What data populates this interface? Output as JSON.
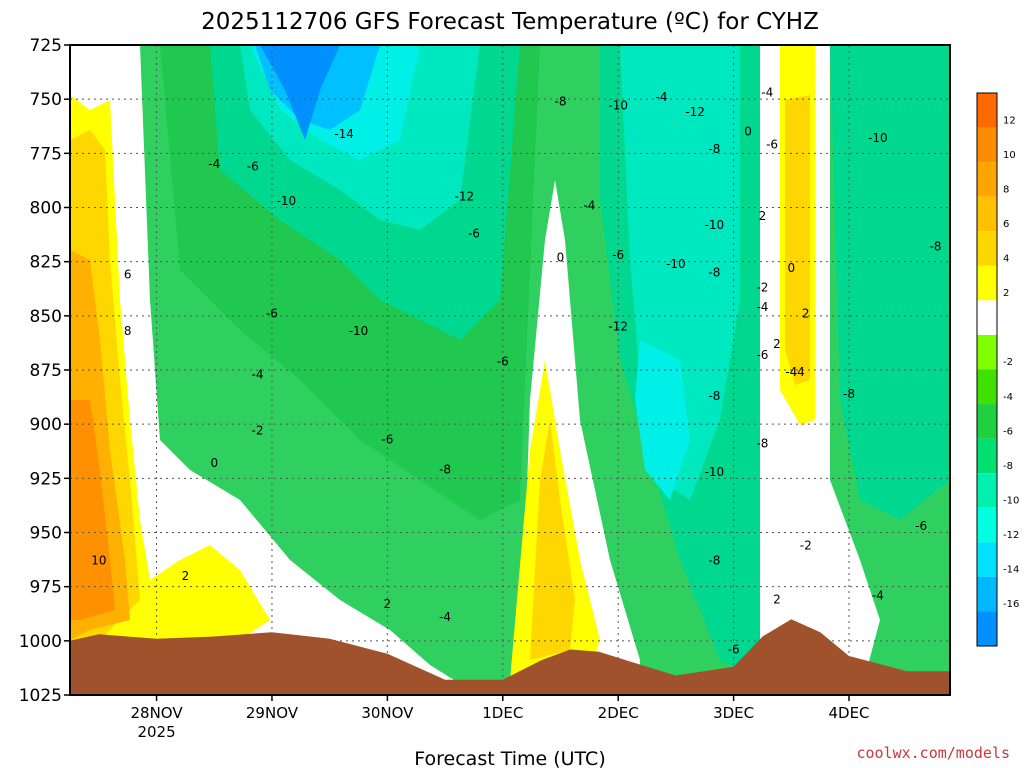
{
  "chart_data": {
    "type": "contour",
    "title": "2025112706 GFS Forecast Temperature (ºC) for CYHZ",
    "xlabel": "Forecast Time (UTC)",
    "ylabel": "",
    "credit": "coolwx.com/models",
    "y_axis": {
      "quantity": "pressure (hPa)",
      "reversed": true,
      "range": [
        725,
        1025
      ],
      "ticks": [
        "725",
        "750",
        "775",
        "800",
        "825",
        "850",
        "875",
        "900",
        "925",
        "950",
        "975",
        "1000",
        "1025"
      ]
    },
    "x_axis": {
      "range_days": [
        "2025-11-27T06",
        "2025-12-04T21"
      ],
      "ticks": [
        {
          "date": "2025-11-28T00",
          "label": "28NOV",
          "sublabel": "2025"
        },
        {
          "date": "2025-11-29T00",
          "label": "29NOV",
          "sublabel": ""
        },
        {
          "date": "2025-11-30T00",
          "label": "30NOV",
          "sublabel": ""
        },
        {
          "date": "2025-12-01T00",
          "label": "1DEC",
          "sublabel": ""
        },
        {
          "date": "2025-12-02T00",
          "label": "2DEC",
          "sublabel": ""
        },
        {
          "date": "2025-12-03T00",
          "label": "3DEC",
          "sublabel": ""
        },
        {
          "date": "2025-12-04T00",
          "label": "4DEC",
          "sublabel": ""
        }
      ]
    },
    "grid": true,
    "colorbar": {
      "position": "right",
      "levels": [
        {
          "label": "12",
          "color": "#ff6a00"
        },
        {
          "label": "10",
          "color": "#ff8c00"
        },
        {
          "label": "8",
          "color": "#ffa500"
        },
        {
          "label": "6",
          "color": "#ffc000"
        },
        {
          "label": "4",
          "color": "#ffd700"
        },
        {
          "label": "2",
          "color": "#ffff00"
        },
        {
          "label": "",
          "color": "#ffffff"
        },
        {
          "label": "-2",
          "color": "#80ff00"
        },
        {
          "label": "-4",
          "color": "#40e000"
        },
        {
          "label": "-6",
          "color": "#20d040"
        },
        {
          "label": "-8",
          "color": "#00e070"
        },
        {
          "label": "-10",
          "color": "#00f0b0"
        },
        {
          "label": "-12",
          "color": "#00ffe0"
        },
        {
          "label": "-14",
          "color": "#00e0ff"
        },
        {
          "label": "-16",
          "color": "#00b8ff"
        },
        {
          "label": "",
          "color": "#0090ff"
        }
      ]
    },
    "ground_color": "#a0522d",
    "surface_pressure": [
      {
        "date": "2025-11-27T06",
        "p": 1000
      },
      {
        "date": "2025-11-27T12",
        "p": 997
      },
      {
        "date": "2025-11-28T00",
        "p": 999
      },
      {
        "date": "2025-11-28T12",
        "p": 998
      },
      {
        "date": "2025-11-29T00",
        "p": 996
      },
      {
        "date": "2025-11-29T12",
        "p": 999
      },
      {
        "date": "2025-11-30T00",
        "p": 1006
      },
      {
        "date": "2025-11-30T12",
        "p": 1018
      },
      {
        "date": "2025-12-01T00",
        "p": 1018
      },
      {
        "date": "2025-12-01T08",
        "p": 1009
      },
      {
        "date": "2025-12-01T14",
        "p": 1004
      },
      {
        "date": "2025-12-01T20",
        "p": 1005
      },
      {
        "date": "2025-12-02T06",
        "p": 1012
      },
      {
        "date": "2025-12-02T12",
        "p": 1016
      },
      {
        "date": "2025-12-03T00",
        "p": 1012
      },
      {
        "date": "2025-12-03T06",
        "p": 998
      },
      {
        "date": "2025-12-03T12",
        "p": 990
      },
      {
        "date": "2025-12-03T18",
        "p": 996
      },
      {
        "date": "2025-12-04T00",
        "p": 1007
      },
      {
        "date": "2025-12-04T12",
        "p": 1014
      },
      {
        "date": "2025-12-04T21",
        "p": 1014
      }
    ],
    "contour_labels": [
      {
        "text": "-4",
        "date": "2025-11-28T12",
        "p": 780
      },
      {
        "text": "-6",
        "date": "2025-11-28T20",
        "p": 781
      },
      {
        "text": "-10",
        "date": "2025-11-29T03",
        "p": 797
      },
      {
        "text": "-14",
        "date": "2025-11-29T15",
        "p": 766
      },
      {
        "text": "-12",
        "date": "2025-11-30T16",
        "p": 795
      },
      {
        "text": "-8",
        "date": "2025-12-01T12",
        "p": 751
      },
      {
        "text": "-4",
        "date": "2025-12-02T09",
        "p": 749
      },
      {
        "text": "-10",
        "date": "2025-12-02T00",
        "p": 753
      },
      {
        "text": "-12",
        "date": "2025-12-02T16",
        "p": 756
      },
      {
        "text": "0",
        "date": "2025-12-03T03",
        "p": 765
      },
      {
        "text": "-4",
        "date": "2025-12-03T07",
        "p": 747
      },
      {
        "text": "-6",
        "date": "2025-12-03T08",
        "p": 771
      },
      {
        "text": "-10",
        "date": "2025-12-04T06",
        "p": 768
      },
      {
        "text": "-8",
        "date": "2025-12-02T20",
        "p": 773
      },
      {
        "text": "-4",
        "date": "2025-12-01T18",
        "p": 799
      },
      {
        "text": "-6",
        "date": "2025-11-30T18",
        "p": 812
      },
      {
        "text": "-10",
        "date": "2025-12-02T20",
        "p": 808
      },
      {
        "text": "2",
        "date": "2025-12-03T06",
        "p": 804
      },
      {
        "text": "-8",
        "date": "2025-12-04T18",
        "p": 818
      },
      {
        "text": "0",
        "date": "2025-12-01T12",
        "p": 823
      },
      {
        "text": "-6",
        "date": "2025-12-02T00",
        "p": 822
      },
      {
        "text": "-10",
        "date": "2025-12-02T12",
        "p": 826
      },
      {
        "text": "-8",
        "date": "2025-12-02T20",
        "p": 830
      },
      {
        "text": "0",
        "date": "2025-12-03T12",
        "p": 828
      },
      {
        "text": "6",
        "date": "2025-11-27T18",
        "p": 831
      },
      {
        "text": "-2",
        "date": "2025-12-03T06",
        "p": 837
      },
      {
        "text": "-6",
        "date": "2025-11-29T00",
        "p": 849
      },
      {
        "text": "-10",
        "date": "2025-11-29T18",
        "p": 857
      },
      {
        "text": "-4",
        "date": "2025-12-03T06",
        "p": 846
      },
      {
        "text": "2",
        "date": "2025-12-03T15",
        "p": 849
      },
      {
        "text": "8",
        "date": "2025-11-27T18",
        "p": 857
      },
      {
        "text": "-12",
        "date": "2025-12-02T00",
        "p": 855
      },
      {
        "text": "-6",
        "date": "2025-12-03T06",
        "p": 868
      },
      {
        "text": "2",
        "date": "2025-12-03T09",
        "p": 863
      },
      {
        "text": "-4",
        "date": "2025-12-03T12",
        "p": 876
      },
      {
        "text": "4",
        "date": "2025-12-03T14",
        "p": 876
      },
      {
        "text": "-6",
        "date": "2025-12-01T00",
        "p": 871
      },
      {
        "text": "-4",
        "date": "2025-11-28T21",
        "p": 877
      },
      {
        "text": "-8",
        "date": "2025-12-02T20",
        "p": 887
      },
      {
        "text": "-8",
        "date": "2025-12-04T00",
        "p": 886
      },
      {
        "text": "-2",
        "date": "2025-11-28T21",
        "p": 903
      },
      {
        "text": "-6",
        "date": "2025-11-30T00",
        "p": 907
      },
      {
        "text": "-8",
        "date": "2025-12-03T06",
        "p": 909
      },
      {
        "text": "0",
        "date": "2025-11-28T12",
        "p": 918
      },
      {
        "text": "-8",
        "date": "2025-11-30T12",
        "p": 921
      },
      {
        "text": "-10",
        "date": "2025-12-02T20",
        "p": 922
      },
      {
        "text": "-6",
        "date": "2025-12-04T15",
        "p": 947
      },
      {
        "text": "-8",
        "date": "2025-12-02T20",
        "p": 963
      },
      {
        "text": "-2",
        "date": "2025-12-03T15",
        "p": 956
      },
      {
        "text": "10",
        "date": "2025-11-27T12",
        "p": 963
      },
      {
        "text": "2",
        "date": "2025-11-28T06",
        "p": 970
      },
      {
        "text": "2",
        "date": "2025-11-30T00",
        "p": 983
      },
      {
        "text": "-4",
        "date": "2025-11-30T12",
        "p": 989
      },
      {
        "text": "-4",
        "date": "2025-12-04T06",
        "p": 979
      },
      {
        "text": "2",
        "date": "2025-12-03T09",
        "p": 981
      },
      {
        "text": "-6",
        "date": "2025-12-03T00",
        "p": 1004
      }
    ]
  }
}
